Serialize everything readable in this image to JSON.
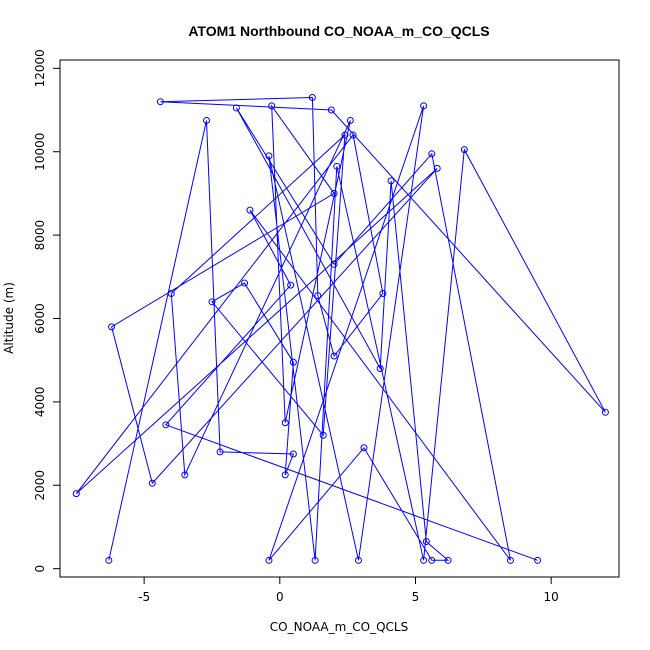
{
  "chart_data": {
    "type": "line",
    "title": "ATOM1 Northbound CO_NOAA_m_CO_QCLS",
    "xlabel": "CO_NOAA_m_CO_QCLS",
    "ylabel": "Altitude (m)",
    "xlim": [
      -8.1,
      12.5
    ],
    "ylim": [
      -200,
      12200
    ],
    "x_ticks": [
      -5,
      0,
      5,
      10
    ],
    "x_tick_labels": [
      "-5",
      "0",
      "5",
      "10"
    ],
    "y_ticks": [
      0,
      2000,
      4000,
      6000,
      8000,
      10000,
      12000
    ],
    "y_tick_labels": [
      "0",
      "2000",
      "4000",
      "6000",
      "8000",
      "10000",
      "12000"
    ],
    "grid": false,
    "legend": "none",
    "series": [
      {
        "color": "#0000ff",
        "marker": "open-circle",
        "x": [
          -6.3,
          -2.7,
          -2.2,
          0.5,
          0.2,
          0.5,
          -1.3,
          -2.5,
          1.6,
          2.4,
          -4.0,
          -3.5,
          2.6,
          0.2,
          -0.3,
          2.0,
          -6.2,
          -4.7,
          5.8,
          -7.5,
          2.7,
          3.8,
          2.0,
          1.4,
          1.2,
          -4.4,
          1.9,
          12.0,
          6.8,
          5.3,
          2.1,
          1.3,
          -0.4,
          2.9,
          5.3,
          -0.4,
          3.1,
          5.6,
          6.2,
          5.4,
          4.1,
          3.7,
          -1.6,
          2.0,
          5.6,
          8.5,
          -1.1,
          0.4,
          -4.2,
          9.5
        ],
        "y": [
          200,
          10750,
          2800,
          2750,
          2250,
          4950,
          6850,
          6400,
          3200,
          10400,
          6600,
          2250,
          10750,
          3500,
          11100,
          9000,
          5800,
          2050,
          9600,
          1800,
          10400,
          6600,
          5100,
          6550,
          11300,
          11200,
          11000,
          3750,
          10050,
          200,
          9650,
          200,
          9900,
          200,
          11100,
          200,
          2900,
          200,
          200,
          650,
          9300,
          4800,
          11050,
          7300,
          9950,
          200,
          8600,
          6800,
          3450,
          200
        ]
      }
    ]
  }
}
